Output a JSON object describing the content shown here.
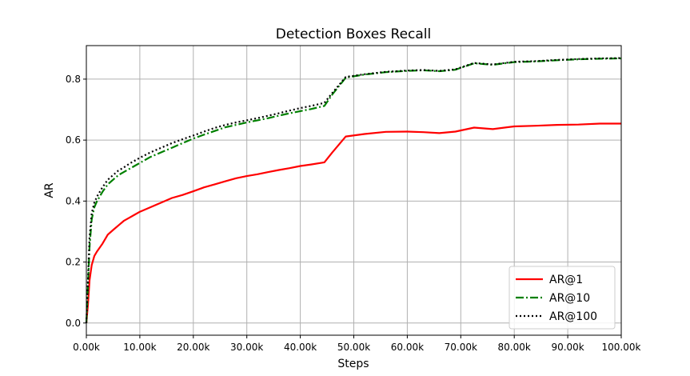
{
  "chart_data": {
    "type": "line",
    "title": "Detection Boxes Recall",
    "xlabel": "Steps",
    "ylabel": "AR",
    "xlim": [
      0,
      100000
    ],
    "ylim": [
      -0.04,
      0.91
    ],
    "xticks": [
      0,
      10000,
      20000,
      30000,
      40000,
      50000,
      60000,
      70000,
      80000,
      90000,
      100000
    ],
    "xtick_labels": [
      "0.00k",
      "10.00k",
      "20.00k",
      "30.00k",
      "40.00k",
      "50.00k",
      "60.00k",
      "70.00k",
      "80.00k",
      "90.00k",
      "100.00k"
    ],
    "yticks": [
      0.0,
      0.2,
      0.4,
      0.6,
      0.8
    ],
    "ytick_labels": [
      "0.0",
      "0.2",
      "0.4",
      "0.6",
      "0.8"
    ],
    "grid": true,
    "legend_position": "bottom-right",
    "series": [
      {
        "name": "AR@1",
        "color": "#ff0000",
        "style": "solid",
        "x": [
          0,
          300,
          600,
          1000,
          1500,
          2000,
          3000,
          4000,
          5000,
          6000,
          7000,
          8000,
          9000,
          10000,
          12000,
          14000,
          16000,
          18000,
          20000,
          22000,
          24000,
          26000,
          28000,
          30000,
          32000,
          34000,
          36000,
          38000,
          40000,
          42000,
          44500,
          46000,
          48500,
          52000,
          56000,
          60000,
          63000,
          66000,
          69000,
          72500,
          76000,
          80000,
          84000,
          88000,
          92000,
          96000,
          100000
        ],
        "y": [
          0.0,
          0.06,
          0.14,
          0.19,
          0.22,
          0.235,
          0.26,
          0.29,
          0.305,
          0.32,
          0.335,
          0.345,
          0.355,
          0.365,
          0.38,
          0.395,
          0.41,
          0.42,
          0.432,
          0.445,
          0.455,
          0.465,
          0.475,
          0.482,
          0.488,
          0.495,
          0.502,
          0.508,
          0.515,
          0.52,
          0.527,
          0.56,
          0.612,
          0.62,
          0.627,
          0.628,
          0.626,
          0.623,
          0.628,
          0.641,
          0.636,
          0.645,
          0.647,
          0.65,
          0.651,
          0.654,
          0.654
        ]
      },
      {
        "name": "AR@10",
        "color": "#008000",
        "style": "dashdot",
        "x": [
          0,
          300,
          600,
          1000,
          1500,
          2000,
          3000,
          4000,
          5000,
          6000,
          7000,
          8000,
          9000,
          10000,
          12000,
          14000,
          16000,
          18000,
          20000,
          22000,
          24000,
          26000,
          28000,
          30000,
          32000,
          34000,
          36000,
          38000,
          40000,
          42000,
          44500,
          46000,
          48500,
          52000,
          56000,
          60000,
          63000,
          66000,
          69000,
          72500,
          76000,
          80000,
          84000,
          88000,
          92000,
          96000,
          100000
        ],
        "y": [
          0.0,
          0.12,
          0.25,
          0.34,
          0.38,
          0.4,
          0.43,
          0.455,
          0.47,
          0.485,
          0.495,
          0.505,
          0.515,
          0.525,
          0.545,
          0.56,
          0.575,
          0.59,
          0.605,
          0.618,
          0.63,
          0.642,
          0.65,
          0.658,
          0.665,
          0.672,
          0.68,
          0.688,
          0.695,
          0.702,
          0.712,
          0.75,
          0.805,
          0.815,
          0.823,
          0.827,
          0.829,
          0.826,
          0.831,
          0.852,
          0.847,
          0.856,
          0.858,
          0.862,
          0.865,
          0.867,
          0.868
        ]
      },
      {
        "name": "AR@100",
        "color": "#000000",
        "style": "dotted",
        "x": [
          0,
          300,
          600,
          1000,
          1500,
          2000,
          3000,
          4000,
          5000,
          6000,
          7000,
          8000,
          9000,
          10000,
          12000,
          14000,
          16000,
          18000,
          20000,
          22000,
          24000,
          26000,
          28000,
          30000,
          32000,
          34000,
          36000,
          38000,
          40000,
          42000,
          44500,
          46000,
          48500,
          52000,
          56000,
          60000,
          63000,
          66000,
          69000,
          72500,
          76000,
          80000,
          84000,
          88000,
          92000,
          96000,
          100000
        ],
        "y": [
          0.0,
          0.14,
          0.28,
          0.36,
          0.395,
          0.415,
          0.445,
          0.47,
          0.485,
          0.5,
          0.51,
          0.522,
          0.532,
          0.542,
          0.56,
          0.575,
          0.59,
          0.603,
          0.615,
          0.628,
          0.64,
          0.65,
          0.658,
          0.665,
          0.672,
          0.68,
          0.688,
          0.697,
          0.705,
          0.712,
          0.722,
          0.755,
          0.807,
          0.816,
          0.824,
          0.828,
          0.83,
          0.827,
          0.832,
          0.853,
          0.848,
          0.857,
          0.859,
          0.863,
          0.866,
          0.868,
          0.869
        ]
      }
    ]
  }
}
